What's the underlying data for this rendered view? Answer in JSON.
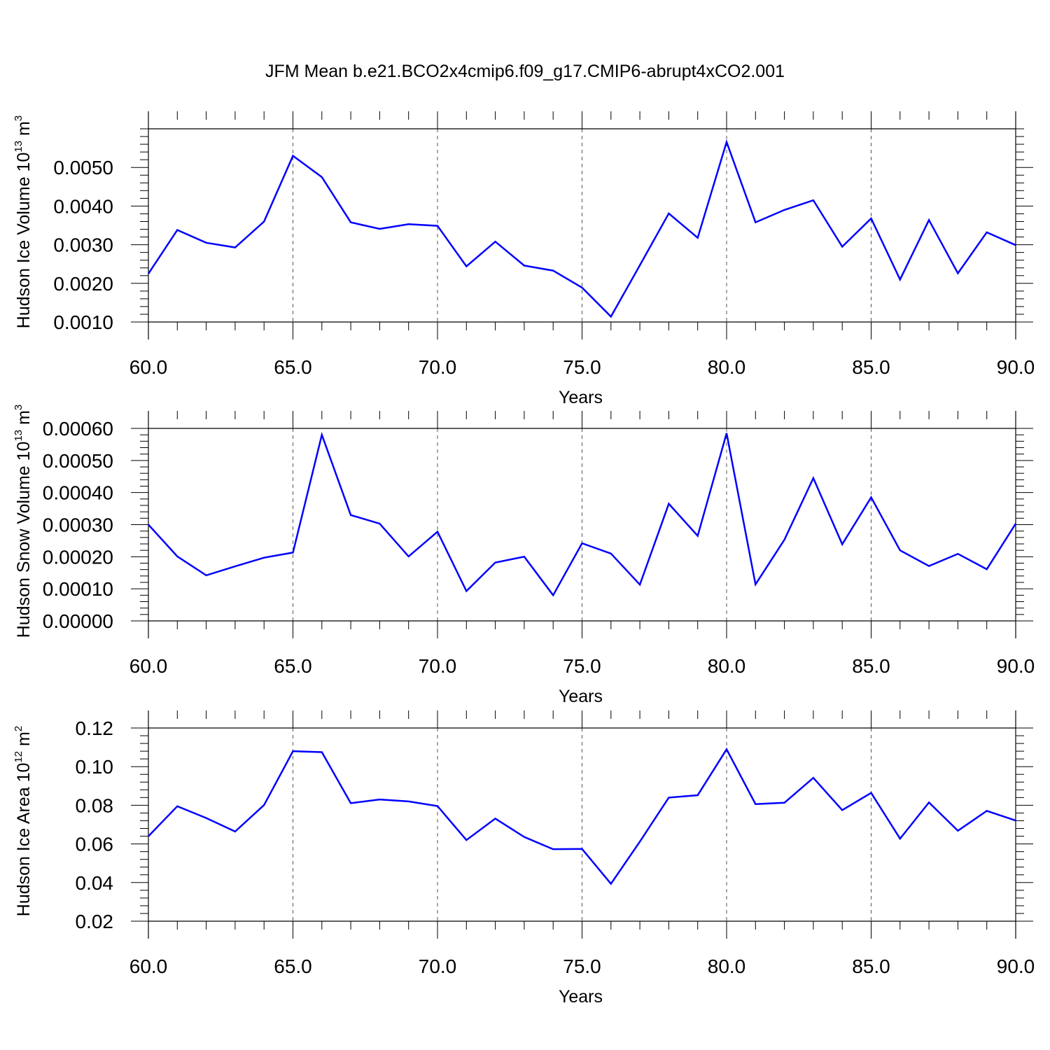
{
  "title": "JFM Mean b.e21.BCO2x4cmip6.f09_g17.CMIP6-abrupt4xCO2.001",
  "line_color": "#0000ff",
  "chart_data": [
    {
      "type": "line",
      "title": "JFM Mean b.e21.BCO2x4cmip6.f09_g17.CMIP6-abrupt4xCO2.001",
      "xlabel": "Years",
      "ylabel": {
        "text": "Hudson Ice Volume 10",
        "exponent": "13",
        "unit": "m",
        "unit_exponent": "3"
      },
      "xlim": [
        60,
        90
      ],
      "ylim": [
        0.001,
        0.006
      ],
      "xticks": [
        "60.0",
        "65.0",
        "70.0",
        "75.0",
        "80.0",
        "85.0",
        "90.0"
      ],
      "xtick_values": [
        60,
        65,
        70,
        75,
        80,
        85,
        90
      ],
      "yticks": [
        "0.0010",
        "0.0020",
        "0.0030",
        "0.0040",
        "0.0050"
      ],
      "ytick_values": [
        0.001,
        0.002,
        0.003,
        0.004,
        0.005
      ],
      "grid": "vertical dashed at major x ticks",
      "x": [
        60,
        61,
        62,
        63,
        64,
        65,
        66,
        67,
        68,
        69,
        70,
        71,
        72,
        73,
        74,
        75,
        76,
        77,
        78,
        79,
        80,
        81,
        82,
        83,
        84,
        85,
        86,
        87,
        88,
        89,
        90
      ],
      "series": [
        {
          "values": [
            0.00225,
            0.00338,
            0.00305,
            0.00293,
            0.0036,
            0.0053,
            0.00475,
            0.00358,
            0.00341,
            0.00353,
            0.00349,
            0.00244,
            0.00308,
            0.00246,
            0.00233,
            0.00189,
            0.00114,
            0.00247,
            0.00381,
            0.00318,
            0.00566,
            0.00358,
            0.0039,
            0.00415,
            0.00295,
            0.00368,
            0.0021,
            0.00364,
            0.00226,
            0.00332,
            0.00299
          ]
        }
      ]
    },
    {
      "type": "line",
      "xlabel": "Years",
      "ylabel": {
        "text": "Hudson Snow Volume 10",
        "exponent": "13",
        "unit": "m",
        "unit_exponent": "3"
      },
      "xlim": [
        60,
        90
      ],
      "ylim": [
        0.0,
        0.0006
      ],
      "xticks": [
        "60.0",
        "65.0",
        "70.0",
        "75.0",
        "80.0",
        "85.0",
        "90.0"
      ],
      "xtick_values": [
        60,
        65,
        70,
        75,
        80,
        85,
        90
      ],
      "yticks": [
        "0.00000",
        "0.00010",
        "0.00020",
        "0.00030",
        "0.00040",
        "0.00050",
        "0.00060"
      ],
      "ytick_values": [
        0.0,
        0.0001,
        0.0002,
        0.0003,
        0.0004,
        0.0005,
        0.0006
      ],
      "grid": "vertical dashed at major x ticks",
      "x": [
        60,
        61,
        62,
        63,
        64,
        65,
        66,
        67,
        68,
        69,
        70,
        71,
        72,
        73,
        74,
        75,
        76,
        77,
        78,
        79,
        80,
        81,
        82,
        83,
        84,
        85,
        86,
        87,
        88,
        89,
        90
      ],
      "series": [
        {
          "values": [
            0.0003,
            0.000201,
            0.000142,
            0.00017,
            0.000197,
            0.000213,
            0.00058,
            0.00033,
            0.000303,
            0.000201,
            0.000278,
            9.3e-05,
            0.000182,
            0.0002,
            8e-05,
            0.000242,
            0.00021,
            0.000113,
            0.000365,
            0.000265,
            0.000585,
            0.000114,
            0.000253,
            0.000445,
            0.000239,
            0.000385,
            0.00022,
            0.000171,
            0.000209,
            0.000161,
            0.000303
          ]
        }
      ]
    },
    {
      "type": "line",
      "xlabel": "Years",
      "ylabel": {
        "text": "Hudson Ice Area 10",
        "exponent": "12",
        "unit": "m",
        "unit_exponent": "2"
      },
      "xlim": [
        60,
        90
      ],
      "ylim": [
        0.02,
        0.12
      ],
      "xticks": [
        "60.0",
        "65.0",
        "70.0",
        "75.0",
        "80.0",
        "85.0",
        "90.0"
      ],
      "xtick_values": [
        60,
        65,
        70,
        75,
        80,
        85,
        90
      ],
      "yticks": [
        "0.02",
        "0.04",
        "0.06",
        "0.08",
        "0.10",
        "0.12"
      ],
      "ytick_values": [
        0.02,
        0.04,
        0.06,
        0.08,
        0.1,
        0.12
      ],
      "grid": "vertical dashed at major x ticks",
      "x": [
        60,
        61,
        62,
        63,
        64,
        65,
        66,
        67,
        68,
        69,
        70,
        71,
        72,
        73,
        74,
        75,
        76,
        77,
        78,
        79,
        80,
        81,
        82,
        83,
        84,
        85,
        86,
        87,
        88,
        89,
        90
      ],
      "series": [
        {
          "values": [
            0.064,
            0.0795,
            0.0734,
            0.0664,
            0.0801,
            0.108,
            0.1075,
            0.0811,
            0.083,
            0.082,
            0.0796,
            0.062,
            0.0731,
            0.0636,
            0.0573,
            0.0574,
            0.0394,
            0.0612,
            0.084,
            0.0852,
            0.109,
            0.0806,
            0.0813,
            0.0942,
            0.0775,
            0.0864,
            0.0627,
            0.0815,
            0.0668,
            0.0771,
            0.0721
          ]
        }
      ]
    }
  ]
}
